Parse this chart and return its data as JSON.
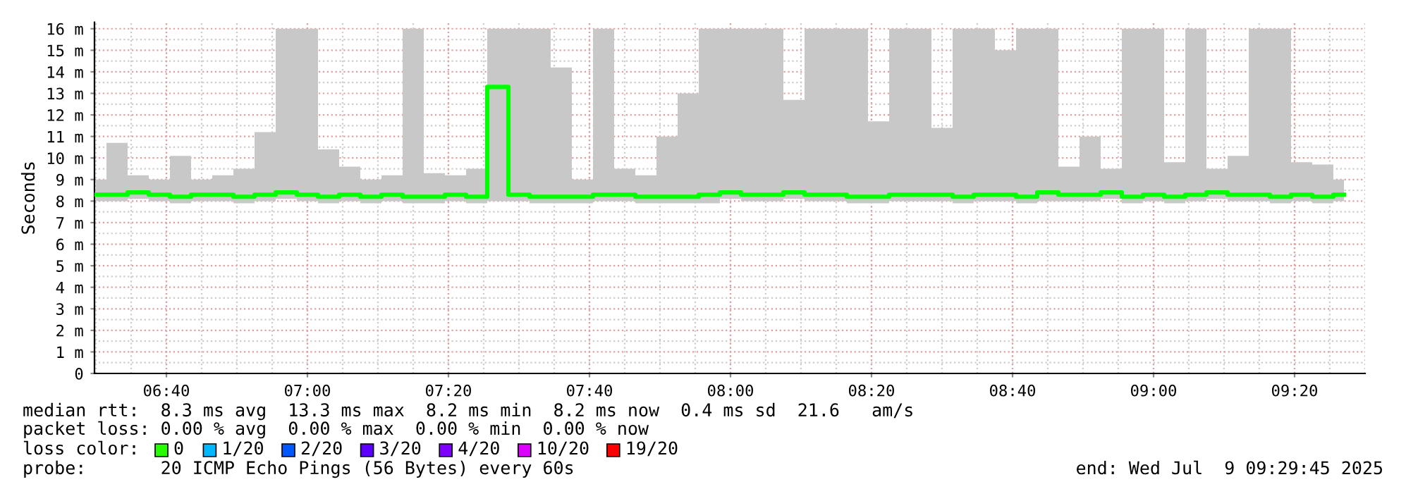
{
  "chart_data": {
    "type": "step",
    "ylabel": "Seconds",
    "x": [
      6.5,
      6.55,
      6.6,
      6.65,
      6.7,
      6.75,
      6.8,
      6.85,
      6.9,
      6.95,
      7.0,
      7.05,
      7.1,
      7.15,
      7.2,
      7.25,
      7.3,
      7.35,
      7.4,
      7.45,
      7.5,
      7.55,
      7.6,
      7.65,
      7.7,
      7.75,
      7.8,
      7.85,
      7.9,
      7.95,
      8.0,
      8.05,
      8.1,
      8.15,
      8.2,
      8.25,
      8.3,
      8.35,
      8.4,
      8.45,
      8.5,
      8.55,
      8.6,
      8.65,
      8.7,
      8.75,
      8.8,
      8.85,
      8.9,
      8.95,
      9.0,
      9.05,
      9.1,
      9.15,
      9.2,
      9.25,
      9.3,
      9.35,
      9.4,
      9.45
    ],
    "series": [
      {
        "color": "#00ff00",
        "values": [
          8.3,
          8.3,
          8.4,
          8.3,
          8.2,
          8.3,
          8.3,
          8.2,
          8.3,
          8.4,
          8.3,
          8.2,
          8.3,
          8.2,
          8.3,
          8.2,
          8.2,
          8.3,
          8.2,
          13.3,
          8.3,
          8.2,
          8.2,
          8.2,
          8.3,
          8.3,
          8.2,
          8.2,
          8.2,
          8.3,
          8.4,
          8.3,
          8.3,
          8.4,
          8.3,
          8.3,
          8.2,
          8.2,
          8.3,
          8.3,
          8.3,
          8.2,
          8.3,
          8.3,
          8.2,
          8.4,
          8.3,
          8.3,
          8.4,
          8.2,
          8.3,
          8.2,
          8.3,
          8.4,
          8.3,
          8.3,
          8.2,
          8.3,
          8.2,
          8.3
        ],
        "lower": [
          8.0,
          8.0,
          8.1,
          8.0,
          7.9,
          8.0,
          8.0,
          7.9,
          8.0,
          8.1,
          8.0,
          7.9,
          8.0,
          7.9,
          8.0,
          7.9,
          7.9,
          8.0,
          7.9,
          8.0,
          8.0,
          7.9,
          7.9,
          7.9,
          8.0,
          8.0,
          7.9,
          7.9,
          7.9,
          7.9,
          8.1,
          8.0,
          8.0,
          8.1,
          8.0,
          8.0,
          7.9,
          7.9,
          8.0,
          8.0,
          8.0,
          7.9,
          8.0,
          8.0,
          7.9,
          8.0,
          8.0,
          8.0,
          8.1,
          7.9,
          8.0,
          7.9,
          8.0,
          8.1,
          8.0,
          8.0,
          7.9,
          8.0,
          7.9,
          8.0
        ],
        "upper": [
          9.0,
          10.7,
          9.2,
          9.0,
          10.1,
          9.0,
          9.2,
          9.5,
          11.2,
          16,
          16,
          10.4,
          9.6,
          9.0,
          9.2,
          16,
          9.3,
          9.2,
          9.5,
          16,
          16,
          16,
          14.2,
          9.0,
          16,
          9.5,
          9.2,
          11.0,
          13.0,
          16,
          16,
          16,
          16,
          12.7,
          16,
          16,
          16,
          11.7,
          16,
          16,
          11.4,
          16,
          16,
          15.0,
          16,
          16,
          9.6,
          11.0,
          9.5,
          16,
          16,
          9.8,
          16,
          9.5,
          10.1,
          16,
          16,
          9.8,
          9.7,
          9.0
        ]
      }
    ],
    "xlim": [
      6.4967,
      9.5
    ],
    "xticks": [
      {
        "value": 6.6667,
        "label": "06:40"
      },
      {
        "value": 7.0,
        "label": "07:00"
      },
      {
        "value": 7.3333,
        "label": "07:20"
      },
      {
        "value": 7.6667,
        "label": "07:40"
      },
      {
        "value": 8.0,
        "label": "08:00"
      },
      {
        "value": 8.3333,
        "label": "08:20"
      },
      {
        "value": 8.6667,
        "label": "08:40"
      },
      {
        "value": 9.0,
        "label": "09:00"
      },
      {
        "value": 9.3333,
        "label": "09:20"
      }
    ],
    "ylim": [
      0,
      16.3
    ],
    "yticks": [
      0,
      {
        "value": 1,
        "label": "1 m"
      },
      {
        "value": 2,
        "label": "2 m"
      },
      {
        "value": 3,
        "label": "3 m"
      },
      {
        "value": 4,
        "label": "4 m"
      },
      {
        "value": 5,
        "label": "5 m"
      },
      {
        "value": 6,
        "label": "6 m"
      },
      {
        "value": 7,
        "label": "7 m"
      },
      {
        "value": 8,
        "label": "8 m"
      },
      {
        "value": 9,
        "label": "9 m"
      },
      {
        "value": 10,
        "label": "10 m"
      },
      {
        "value": 11,
        "label": "11 m"
      },
      {
        "value": 12,
        "label": "12 m"
      },
      {
        "value": 13,
        "label": "13 m"
      },
      {
        "value": 14,
        "label": "14 m"
      },
      {
        "value": 15,
        "label": "15 m"
      },
      {
        "value": 16,
        "label": "16 m"
      }
    ],
    "grid": true,
    "annotations": [
      "median rtt:  8.3 ms avg  13.3 ms max  8.2 ms min  8.2 ms now  0.4 ms sd  21.6   am/s",
      "packet loss: 0.00 % avg  0.00 % max  0.00 % min  0.00 % now",
      "loss color:",
      "0",
      "1/20",
      "2/20",
      "3/20",
      "4/20",
      "10/20",
      "19/20",
      "probe:       20 ICMP Echo Pings (56 Bytes) every 60s",
      "end: Wed Jul  9 09:29:45 2025"
    ]
  }
}
